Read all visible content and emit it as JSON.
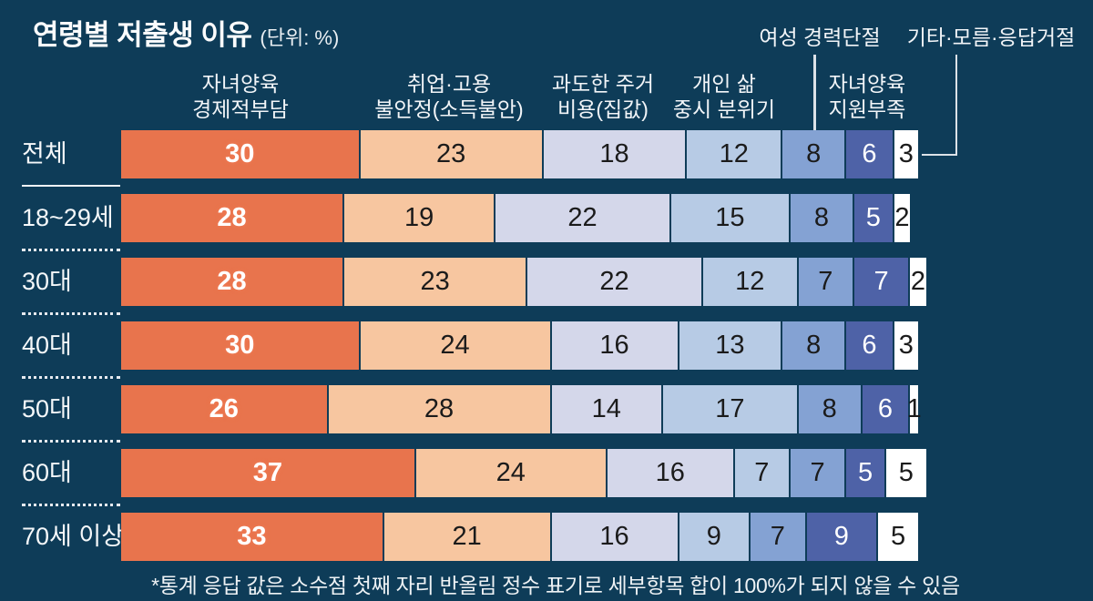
{
  "title": {
    "text": "연령별 저출생 이유",
    "unit": "(단위: %)"
  },
  "top_labels": [
    {
      "text": "여성 경력단절"
    },
    {
      "text": "기타·모름·응답거절"
    }
  ],
  "column_headers": [
    {
      "lines": [
        "자녀양육",
        "경제적부담"
      ]
    },
    {
      "lines": [
        "취업·고용",
        "불안정(소득불안)"
      ]
    },
    {
      "lines": [
        "과도한 주거",
        "비용(집값)"
      ]
    },
    {
      "lines": [
        "개인 삶",
        "중시 분위기"
      ]
    },
    {
      "lines": [
        "자녀양육",
        "지원부족"
      ]
    }
  ],
  "footnote": "*통계 응답 값은 소수점 첫째 자리 반올림 정수 표기로 세부항목 합이 100%가 되지 않을 수 있음",
  "segment_colors": [
    "#e8744d",
    "#f7c6a0",
    "#d4d7ea",
    "#b7cbe5",
    "#84a2d3",
    "#4e62a7",
    "#ffffff"
  ],
  "segment_text_colors": [
    "#ffffff",
    "#1b1b1b",
    "#1b1b1b",
    "#1b1b1b",
    "#1b1b1b",
    "#ffffff",
    "#1b1b1b"
  ],
  "background_color": "#0e3c58",
  "chart_data": {
    "type": "bar",
    "subtype": "horizontal-stacked",
    "title": "연령별 저출생 이유",
    "unit": "%",
    "legend_position": "top (column headers over first row segments)",
    "grid": false,
    "categories": [
      "전체",
      "18~29세",
      "30대",
      "40대",
      "50대",
      "60대",
      "70세 이상"
    ],
    "series": [
      {
        "name": "자녀양육 경제적부담",
        "values": [
          30,
          28,
          28,
          30,
          26,
          37,
          33
        ]
      },
      {
        "name": "취업·고용 불안정(소득불안)",
        "values": [
          23,
          19,
          23,
          24,
          28,
          24,
          21
        ]
      },
      {
        "name": "과도한 주거 비용(집값)",
        "values": [
          18,
          22,
          22,
          16,
          14,
          16,
          16
        ]
      },
      {
        "name": "개인 삶 중시 분위기",
        "values": [
          12,
          15,
          12,
          13,
          17,
          7,
          9
        ]
      },
      {
        "name": "여성 경력단절",
        "values": [
          8,
          8,
          7,
          8,
          8,
          7,
          7
        ]
      },
      {
        "name": "자녀양육 지원부족",
        "values": [
          6,
          5,
          7,
          6,
          6,
          5,
          9
        ]
      },
      {
        "name": "기타·모름·응답거절",
        "values": [
          3,
          2,
          2,
          3,
          1,
          5,
          5
        ]
      }
    ],
    "note": "*통계 응답 값은 소수점 첫째 자리 반올림 정수 표기로 세부항목 합이 100%가 되지 않을 수 있음"
  }
}
